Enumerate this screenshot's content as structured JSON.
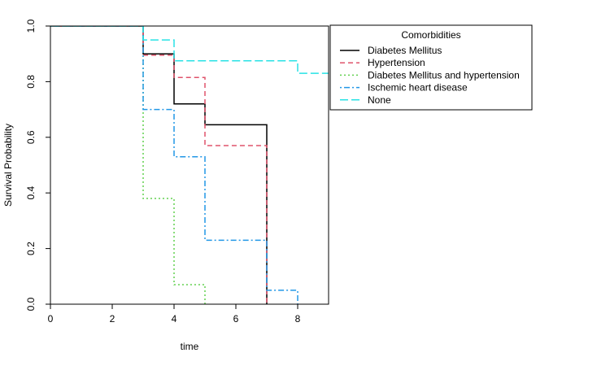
{
  "chart_data": {
    "type": "line",
    "step": true,
    "title": "",
    "xlabel": "time",
    "ylabel": "Survival Probability",
    "xlim": [
      0,
      9
    ],
    "ylim": [
      0,
      1
    ],
    "xticks": [
      "0",
      "2",
      "4",
      "6",
      "8"
    ],
    "yticks": [
      "0.0",
      "0.2",
      "0.4",
      "0.6",
      "0.8",
      "1.0"
    ],
    "grid": false,
    "legend": {
      "title": "Comorbidities",
      "position": "top-right"
    },
    "series": [
      {
        "name": "Diabetes Mellitus",
        "color": "#000000",
        "dash": "solid",
        "x": [
          0,
          3,
          4,
          5,
          7,
          7
        ],
        "y": [
          1.0,
          0.9,
          0.72,
          0.645,
          0.645,
          0.0
        ]
      },
      {
        "name": "Hypertension",
        "color": "#DF536B",
        "dash": "dashed",
        "x": [
          0,
          3,
          4,
          5,
          7,
          7
        ],
        "y": [
          1.0,
          0.895,
          0.815,
          0.57,
          0.57,
          0.0
        ]
      },
      {
        "name": "Diabetes Mellitus and hypertension",
        "color": "#61D04F",
        "dash": "dotted",
        "x": [
          0,
          3,
          4,
          5,
          5
        ],
        "y": [
          1.0,
          0.38,
          0.07,
          0.07,
          0.0
        ]
      },
      {
        "name": "Ischemic heart disease",
        "color": "#2297E6",
        "dash": "dotdash",
        "x": [
          0,
          3,
          4,
          5,
          7,
          8,
          8
        ],
        "y": [
          1.0,
          0.7,
          0.53,
          0.23,
          0.05,
          0.05,
          0.0
        ]
      },
      {
        "name": "None",
        "color": "#28E2E5",
        "dash": "longdash",
        "x": [
          0,
          3,
          4,
          8,
          9
        ],
        "y": [
          1.0,
          0.95,
          0.875,
          0.83,
          0.83
        ]
      }
    ]
  }
}
